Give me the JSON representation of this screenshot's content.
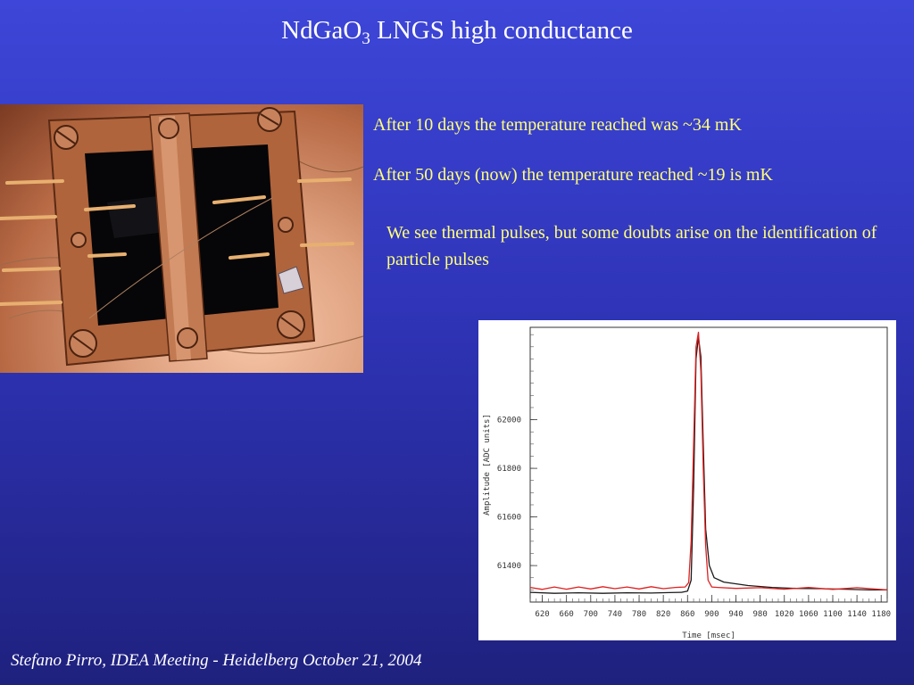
{
  "slide": {
    "title_main": "NdGaO",
    "title_subscript": "3",
    "title_rest": " LNGS high conductance",
    "bullet_1": "After 10 days the temperature reached was ~34 mK",
    "bullet_2": "After 50 days (now) the temperature reached  ~19 is mK",
    "bullet_3": "We see thermal pulses, but some doubts arise on the identification of particle pulses",
    "footer": "Stefano Pirro, IDEA Meeting - Heidelberg  October 21, 2004"
  },
  "photo": {
    "subject": "detector holder photo"
  },
  "chart_data": {
    "type": "line",
    "title": "",
    "xlabel": "Time [msec]",
    "ylabel": "Amplitude [ADC units]",
    "xlim": [
      600,
      1190
    ],
    "ylim": [
      61250,
      62380
    ],
    "x_ticks": [
      620,
      660,
      700,
      740,
      780,
      820,
      860,
      900,
      940,
      980,
      1020,
      1060,
      1100,
      1140,
      1180
    ],
    "y_ticks": [
      61400,
      61600,
      61800,
      62000
    ],
    "colors": {
      "series_1": "#1a1a1a",
      "series_2": "#e02020"
    },
    "series": [
      {
        "color": "#1a1a1a",
        "x": [
          600,
          640,
          680,
          720,
          760,
          800,
          830,
          850,
          860,
          866,
          870,
          874,
          878,
          882,
          886,
          890,
          896,
          904,
          920,
          960,
          1000,
          1040,
          1080,
          1120,
          1160,
          1190
        ],
        "y": [
          61290,
          61286,
          61288,
          61286,
          61288,
          61287,
          61289,
          61290,
          61295,
          61340,
          61720,
          62250,
          62340,
          62260,
          61900,
          61550,
          61400,
          61350,
          61332,
          61318,
          61310,
          61306,
          61305,
          61303,
          61300,
          61300
        ]
      },
      {
        "color": "#e02020",
        "x": [
          600,
          620,
          640,
          660,
          680,
          700,
          720,
          740,
          760,
          780,
          800,
          820,
          840,
          856,
          862,
          866,
          870,
          874,
          878,
          882,
          886,
          890,
          894,
          900,
          910,
          940,
          980,
          1020,
          1060,
          1100,
          1140,
          1190
        ],
        "y": [
          61310,
          61302,
          61312,
          61303,
          61312,
          61304,
          61313,
          61305,
          61312,
          61304,
          61313,
          61305,
          61310,
          61312,
          61330,
          61500,
          61900,
          62300,
          62360,
          62200,
          61800,
          61480,
          61340,
          61312,
          61310,
          61306,
          61309,
          61303,
          61310,
          61302,
          61309,
          61300
        ]
      }
    ]
  }
}
